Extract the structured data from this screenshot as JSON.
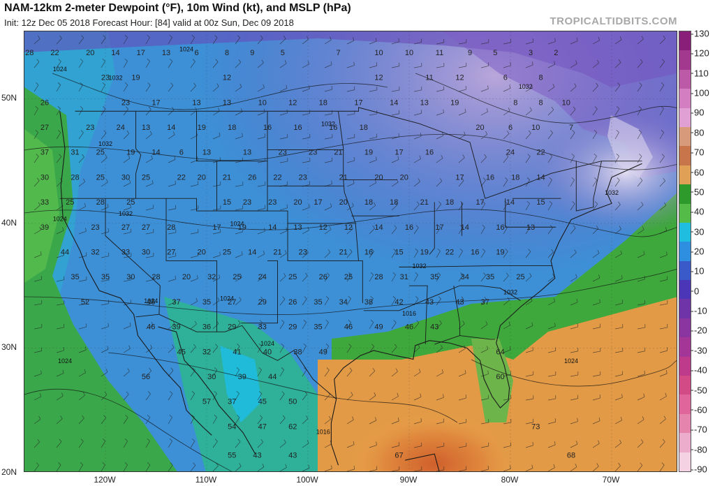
{
  "header": {
    "title": "NAM-12km 2-meter Dewpoint (°F), 10m Wind (kt), and MSLP (hPa)",
    "subtitle": "Init: 12z Dec 05 2018   Forecast Hour: [84]   valid at 00z Sun, Dec 09 2018",
    "brand": "TROPICALTIDBITS.COM"
  },
  "map": {
    "lat_labels": [
      {
        "text": "50N",
        "lat": 50
      },
      {
        "text": "40N",
        "lat": 40
      },
      {
        "text": "30N",
        "lat": 30
      },
      {
        "text": "20N",
        "lat": 20
      }
    ],
    "lon_labels": [
      {
        "text": "120W",
        "lon": -120
      },
      {
        "text": "110W",
        "lon": -110
      },
      {
        "text": "100W",
        "lon": -100
      },
      {
        "text": "90W",
        "lon": -90
      },
      {
        "text": "80W",
        "lon": -80
      },
      {
        "text": "70W",
        "lon": -70
      }
    ],
    "dewpoint_points": [
      {
        "v": "28",
        "lon": -127.5,
        "lat": 53.5
      },
      {
        "v": "22",
        "lon": -125,
        "lat": 53.5
      },
      {
        "v": "20",
        "lon": -121.5,
        "lat": 53.5
      },
      {
        "v": "14",
        "lon": -119,
        "lat": 53.5
      },
      {
        "v": "17",
        "lon": -116.5,
        "lat": 53.5
      },
      {
        "v": "13",
        "lon": -114,
        "lat": 53.5
      },
      {
        "v": "6",
        "lon": -111,
        "lat": 53.5
      },
      {
        "v": "8",
        "lon": -108,
        "lat": 53.5
      },
      {
        "v": "9",
        "lon": -105.5,
        "lat": 53.5
      },
      {
        "v": "5",
        "lon": -102.5,
        "lat": 53.5
      },
      {
        "v": "7",
        "lon": -97,
        "lat": 53.5
      },
      {
        "v": "10",
        "lon": -93,
        "lat": 53.5
      },
      {
        "v": "10",
        "lon": -90,
        "lat": 53.5
      },
      {
        "v": "11",
        "lon": -87,
        "lat": 53.5
      },
      {
        "v": "9",
        "lon": -84,
        "lat": 53.5
      },
      {
        "v": "5",
        "lon": -81.5,
        "lat": 53.5
      },
      {
        "v": "3",
        "lon": -78,
        "lat": 53.5
      },
      {
        "v": "2",
        "lon": -75.5,
        "lat": 53.5
      },
      {
        "v": "23",
        "lon": -120,
        "lat": 51.5
      },
      {
        "v": "19",
        "lon": -117,
        "lat": 51.5
      },
      {
        "v": "12",
        "lon": -108,
        "lat": 51.5
      },
      {
        "v": "12",
        "lon": -93,
        "lat": 51.5
      },
      {
        "v": "11",
        "lon": -88,
        "lat": 51.5
      },
      {
        "v": "12",
        "lon": -85,
        "lat": 51.5
      },
      {
        "v": "6",
        "lon": -80.5,
        "lat": 51.5
      },
      {
        "v": "8",
        "lon": -77,
        "lat": 51.5
      },
      {
        "v": "26",
        "lon": -126,
        "lat": 49.5
      },
      {
        "v": "23",
        "lon": -118,
        "lat": 49.5
      },
      {
        "v": "17",
        "lon": -115,
        "lat": 49.5
      },
      {
        "v": "13",
        "lon": -111,
        "lat": 49.5
      },
      {
        "v": "13",
        "lon": -108,
        "lat": 49.5
      },
      {
        "v": "10",
        "lon": -104.5,
        "lat": 49.5
      },
      {
        "v": "12",
        "lon": -101.5,
        "lat": 49.5
      },
      {
        "v": "18",
        "lon": -98.5,
        "lat": 49.5
      },
      {
        "v": "17",
        "lon": -95,
        "lat": 49.5
      },
      {
        "v": "14",
        "lon": -91.5,
        "lat": 49.5
      },
      {
        "v": "13",
        "lon": -88.5,
        "lat": 49.5
      },
      {
        "v": "19",
        "lon": -85.5,
        "lat": 49.5
      },
      {
        "v": "8",
        "lon": -79.5,
        "lat": 49.5
      },
      {
        "v": "8",
        "lon": -77,
        "lat": 49.5
      },
      {
        "v": "10",
        "lon": -74.5,
        "lat": 49.5
      },
      {
        "v": "27",
        "lon": -126,
        "lat": 47.5
      },
      {
        "v": "23",
        "lon": -121.5,
        "lat": 47.5
      },
      {
        "v": "24",
        "lon": -118.5,
        "lat": 47.5
      },
      {
        "v": "13",
        "lon": -116,
        "lat": 47.5
      },
      {
        "v": "14",
        "lon": -113.5,
        "lat": 47.5
      },
      {
        "v": "19",
        "lon": -110.5,
        "lat": 47.5
      },
      {
        "v": "18",
        "lon": -107.5,
        "lat": 47.5
      },
      {
        "v": "16",
        "lon": -104,
        "lat": 47.5
      },
      {
        "v": "16",
        "lon": -101,
        "lat": 47.5
      },
      {
        "v": "16",
        "lon": -97.5,
        "lat": 47.5
      },
      {
        "v": "18",
        "lon": -94.5,
        "lat": 47.5
      },
      {
        "v": "20",
        "lon": -83,
        "lat": 47.5
      },
      {
        "v": "6",
        "lon": -80,
        "lat": 47.5
      },
      {
        "v": "10",
        "lon": -77.5,
        "lat": 47.5
      },
      {
        "v": "7",
        "lon": -74,
        "lat": 47.5
      },
      {
        "v": "37",
        "lon": -126,
        "lat": 45.5
      },
      {
        "v": "31",
        "lon": -123,
        "lat": 45.5
      },
      {
        "v": "25",
        "lon": -120.5,
        "lat": 45.5
      },
      {
        "v": "19",
        "lon": -117.5,
        "lat": 45.5
      },
      {
        "v": "14",
        "lon": -115,
        "lat": 45.5
      },
      {
        "v": "6",
        "lon": -112.5,
        "lat": 45.5
      },
      {
        "v": "13",
        "lon": -110,
        "lat": 45.5
      },
      {
        "v": "13",
        "lon": -106,
        "lat": 45.5
      },
      {
        "v": "23",
        "lon": -102.5,
        "lat": 45.5
      },
      {
        "v": "23",
        "lon": -99.5,
        "lat": 45.5
      },
      {
        "v": "21",
        "lon": -97,
        "lat": 45.5
      },
      {
        "v": "19",
        "lon": -94,
        "lat": 45.5
      },
      {
        "v": "17",
        "lon": -91,
        "lat": 45.5
      },
      {
        "v": "16",
        "lon": -88,
        "lat": 45.5
      },
      {
        "v": "24",
        "lon": -80,
        "lat": 45.5
      },
      {
        "v": "22",
        "lon": -77,
        "lat": 45.5
      },
      {
        "v": "30",
        "lon": -126,
        "lat": 43.5
      },
      {
        "v": "28",
        "lon": -123,
        "lat": 43.5
      },
      {
        "v": "25",
        "lon": -120.5,
        "lat": 43.5
      },
      {
        "v": "30",
        "lon": -118,
        "lat": 43.5
      },
      {
        "v": "25",
        "lon": -116,
        "lat": 43.5
      },
      {
        "v": "22",
        "lon": -112.5,
        "lat": 43.5
      },
      {
        "v": "20",
        "lon": -110.5,
        "lat": 43.5
      },
      {
        "v": "21",
        "lon": -108,
        "lat": 43.5
      },
      {
        "v": "26",
        "lon": -105.5,
        "lat": 43.5
      },
      {
        "v": "22",
        "lon": -103,
        "lat": 43.5
      },
      {
        "v": "23",
        "lon": -100.5,
        "lat": 43.5
      },
      {
        "v": "21",
        "lon": -96.5,
        "lat": 43.5
      },
      {
        "v": "20",
        "lon": -93,
        "lat": 43.5
      },
      {
        "v": "20",
        "lon": -90.5,
        "lat": 43.5
      },
      {
        "v": "17",
        "lon": -85,
        "lat": 43.5
      },
      {
        "v": "16",
        "lon": -82,
        "lat": 43.5
      },
      {
        "v": "18",
        "lon": -79.5,
        "lat": 43.5
      },
      {
        "v": "14",
        "lon": -77,
        "lat": 43.5
      },
      {
        "v": "33",
        "lon": -126,
        "lat": 41.5
      },
      {
        "v": "25",
        "lon": -123.5,
        "lat": 41.5
      },
      {
        "v": "28",
        "lon": -120.5,
        "lat": 41.5
      },
      {
        "v": "25",
        "lon": -117.5,
        "lat": 41.5
      },
      {
        "v": "15",
        "lon": -108,
        "lat": 41.5
      },
      {
        "v": "23",
        "lon": -106,
        "lat": 41.5
      },
      {
        "v": "23",
        "lon": -103.5,
        "lat": 41.5
      },
      {
        "v": "20",
        "lon": -101,
        "lat": 41.5
      },
      {
        "v": "17",
        "lon": -99,
        "lat": 41.5
      },
      {
        "v": "20",
        "lon": -96.5,
        "lat": 41.5
      },
      {
        "v": "18",
        "lon": -94,
        "lat": 41.5
      },
      {
        "v": "18",
        "lon": -91.5,
        "lat": 41.5
      },
      {
        "v": "21",
        "lon": -88.5,
        "lat": 41.5
      },
      {
        "v": "18",
        "lon": -86,
        "lat": 41.5
      },
      {
        "v": "17",
        "lon": -83,
        "lat": 41.5
      },
      {
        "v": "14",
        "lon": -80,
        "lat": 41.5
      },
      {
        "v": "15",
        "lon": -77,
        "lat": 41.5
      },
      {
        "v": "39",
        "lon": -126,
        "lat": 39.5
      },
      {
        "v": "23",
        "lon": -121,
        "lat": 39.5
      },
      {
        "v": "27",
        "lon": -118,
        "lat": 39.5
      },
      {
        "v": "27",
        "lon": -116,
        "lat": 39.5
      },
      {
        "v": "28",
        "lon": -113.5,
        "lat": 39.5
      },
      {
        "v": "17",
        "lon": -109,
        "lat": 39.5
      },
      {
        "v": "19",
        "lon": -106.5,
        "lat": 39.5
      },
      {
        "v": "14",
        "lon": -103.5,
        "lat": 39.5
      },
      {
        "v": "13",
        "lon": -101,
        "lat": 39.5
      },
      {
        "v": "12",
        "lon": -98.5,
        "lat": 39.5
      },
      {
        "v": "12",
        "lon": -96,
        "lat": 39.5
      },
      {
        "v": "14",
        "lon": -93,
        "lat": 39.5
      },
      {
        "v": "16",
        "lon": -90,
        "lat": 39.5
      },
      {
        "v": "17",
        "lon": -87,
        "lat": 39.5
      },
      {
        "v": "14",
        "lon": -84.5,
        "lat": 39.5
      },
      {
        "v": "16",
        "lon": -81,
        "lat": 39.5
      },
      {
        "v": "13",
        "lon": -78,
        "lat": 39.5
      },
      {
        "v": "44",
        "lon": -124,
        "lat": 37.5
      },
      {
        "v": "32",
        "lon": -121,
        "lat": 37.5
      },
      {
        "v": "33",
        "lon": -118,
        "lat": 37.5
      },
      {
        "v": "30",
        "lon": -116,
        "lat": 37.5
      },
      {
        "v": "27",
        "lon": -113.5,
        "lat": 37.5
      },
      {
        "v": "20",
        "lon": -110.5,
        "lat": 37.5
      },
      {
        "v": "25",
        "lon": -108,
        "lat": 37.5
      },
      {
        "v": "14",
        "lon": -105.5,
        "lat": 37.5
      },
      {
        "v": "21",
        "lon": -103,
        "lat": 37.5
      },
      {
        "v": "23",
        "lon": -100.5,
        "lat": 37.5
      },
      {
        "v": "21",
        "lon": -96.5,
        "lat": 37.5
      },
      {
        "v": "16",
        "lon": -94,
        "lat": 37.5
      },
      {
        "v": "15",
        "lon": -91,
        "lat": 37.5
      },
      {
        "v": "19",
        "lon": -88.5,
        "lat": 37.5
      },
      {
        "v": "22",
        "lon": -86,
        "lat": 37.5
      },
      {
        "v": "16",
        "lon": -83.5,
        "lat": 37.5
      },
      {
        "v": "19",
        "lon": -81,
        "lat": 37.5
      },
      {
        "v": "35",
        "lon": -123,
        "lat": 35.5
      },
      {
        "v": "35",
        "lon": -120,
        "lat": 35.5
      },
      {
        "v": "30",
        "lon": -117.5,
        "lat": 35.5
      },
      {
        "v": "28",
        "lon": -115,
        "lat": 35.5
      },
      {
        "v": "20",
        "lon": -112,
        "lat": 35.5
      },
      {
        "v": "32",
        "lon": -109.5,
        "lat": 35.5
      },
      {
        "v": "25",
        "lon": -107,
        "lat": 35.5
      },
      {
        "v": "24",
        "lon": -104.5,
        "lat": 35.5
      },
      {
        "v": "25",
        "lon": -101.5,
        "lat": 35.5
      },
      {
        "v": "26",
        "lon": -98.5,
        "lat": 35.5
      },
      {
        "v": "25",
        "lon": -96,
        "lat": 35.5
      },
      {
        "v": "28",
        "lon": -93,
        "lat": 35.5
      },
      {
        "v": "31",
        "lon": -90.5,
        "lat": 35.5
      },
      {
        "v": "35",
        "lon": -87.5,
        "lat": 35.5
      },
      {
        "v": "34",
        "lon": -84.5,
        "lat": 35.5
      },
      {
        "v": "35",
        "lon": -82,
        "lat": 35.5
      },
      {
        "v": "25",
        "lon": -79,
        "lat": 35.5
      },
      {
        "v": "52",
        "lon": -122,
        "lat": 33.5
      },
      {
        "v": "46",
        "lon": -115.5,
        "lat": 33.5
      },
      {
        "v": "37",
        "lon": -113,
        "lat": 33.5
      },
      {
        "v": "35",
        "lon": -110,
        "lat": 33.5
      },
      {
        "v": "27",
        "lon": -107.5,
        "lat": 33.5
      },
      {
        "v": "29",
        "lon": -104.5,
        "lat": 33.5
      },
      {
        "v": "26",
        "lon": -101.5,
        "lat": 33.5
      },
      {
        "v": "35",
        "lon": -99,
        "lat": 33.5
      },
      {
        "v": "34",
        "lon": -96.5,
        "lat": 33.5
      },
      {
        "v": "38",
        "lon": -94,
        "lat": 33.5
      },
      {
        "v": "42",
        "lon": -91,
        "lat": 33.5
      },
      {
        "v": "43",
        "lon": -88,
        "lat": 33.5
      },
      {
        "v": "43",
        "lon": -85,
        "lat": 33.5
      },
      {
        "v": "37",
        "lon": -82.5,
        "lat": 33.5
      },
      {
        "v": "46",
        "lon": -115.5,
        "lat": 31.5
      },
      {
        "v": "39",
        "lon": -113,
        "lat": 31.5
      },
      {
        "v": "36",
        "lon": -110,
        "lat": 31.5
      },
      {
        "v": "29",
        "lon": -107.5,
        "lat": 31.5
      },
      {
        "v": "33",
        "lon": -104.5,
        "lat": 31.5
      },
      {
        "v": "29",
        "lon": -101.5,
        "lat": 31.5
      },
      {
        "v": "35",
        "lon": -99,
        "lat": 31.5
      },
      {
        "v": "46",
        "lon": -96,
        "lat": 31.5
      },
      {
        "v": "49",
        "lon": -93,
        "lat": 31.5
      },
      {
        "v": "46",
        "lon": -90,
        "lat": 31.5
      },
      {
        "v": "43",
        "lon": -87.5,
        "lat": 31.5
      },
      {
        "v": "45",
        "lon": -112.5,
        "lat": 29.5
      },
      {
        "v": "32",
        "lon": -110,
        "lat": 29.5
      },
      {
        "v": "41",
        "lon": -107,
        "lat": 29.5
      },
      {
        "v": "40",
        "lon": -104,
        "lat": 29.5
      },
      {
        "v": "38",
        "lon": -101,
        "lat": 29.5
      },
      {
        "v": "49",
        "lon": -98.5,
        "lat": 29.5
      },
      {
        "v": "64",
        "lon": -81,
        "lat": 29.5
      },
      {
        "v": "56",
        "lon": -116,
        "lat": 27.5
      },
      {
        "v": "30",
        "lon": -109.5,
        "lat": 27.5
      },
      {
        "v": "39",
        "lon": -106.5,
        "lat": 27.5
      },
      {
        "v": "44",
        "lon": -103.5,
        "lat": 27.5
      },
      {
        "v": "60",
        "lon": -81,
        "lat": 27.5
      },
      {
        "v": "57",
        "lon": -110,
        "lat": 25.5
      },
      {
        "v": "37",
        "lon": -107.5,
        "lat": 25.5
      },
      {
        "v": "45",
        "lon": -104.5,
        "lat": 25.5
      },
      {
        "v": "50",
        "lon": -101.5,
        "lat": 25.5
      },
      {
        "v": "54",
        "lon": -107.5,
        "lat": 23.5
      },
      {
        "v": "47",
        "lon": -104.5,
        "lat": 23.5
      },
      {
        "v": "62",
        "lon": -101.5,
        "lat": 23.5
      },
      {
        "v": "73",
        "lon": -77.5,
        "lat": 23.5
      },
      {
        "v": "55",
        "lon": -107.5,
        "lat": 21.2
      },
      {
        "v": "43",
        "lon": -105,
        "lat": 21.2
      },
      {
        "v": "43",
        "lon": -101.5,
        "lat": 21.2
      },
      {
        "v": "67",
        "lon": -91,
        "lat": 21.2
      },
      {
        "v": "68",
        "lon": -74,
        "lat": 21.2
      }
    ],
    "pressure_labels": [
      {
        "v": "1024",
        "lon": -112,
        "lat": 53.8
      },
      {
        "v": "1024",
        "lon": -124.5,
        "lat": 52.2
      },
      {
        "v": "1032",
        "lon": -119,
        "lat": 51.5
      },
      {
        "v": "1032",
        "lon": -98,
        "lat": 47.8
      },
      {
        "v": "1032",
        "lon": -78.5,
        "lat": 50.8
      },
      {
        "v": "1032",
        "lon": -120,
        "lat": 46.2
      },
      {
        "v": "1032",
        "lon": -118,
        "lat": 40.6
      },
      {
        "v": "1024",
        "lon": -107,
        "lat": 39.8
      },
      {
        "v": "1024",
        "lon": -124.5,
        "lat": 40.2
      },
      {
        "v": "1032",
        "lon": -89,
        "lat": 36.4
      },
      {
        "v": "1032",
        "lon": -70,
        "lat": 42.3
      },
      {
        "v": "1032",
        "lon": -80,
        "lat": 34.3
      },
      {
        "v": "1024",
        "lon": -115.5,
        "lat": 33.6
      },
      {
        "v": "1024",
        "lon": -108,
        "lat": 33.8
      },
      {
        "v": "1016",
        "lon": -90,
        "lat": 32.6
      },
      {
        "v": "1024",
        "lon": -104,
        "lat": 30.2
      },
      {
        "v": "1024",
        "lon": -124,
        "lat": 28.8
      },
      {
        "v": "1024",
        "lon": -74,
        "lat": 28.8
      },
      {
        "v": "1016",
        "lon": -98.5,
        "lat": 23.1
      }
    ]
  },
  "colorbar": {
    "ticks": [
      "130",
      "120",
      "110",
      "100",
      "90",
      "80",
      "70",
      "60",
      "50",
      "40",
      "30",
      "20",
      "10",
      "0",
      "-10",
      "-20",
      "-30",
      "-40",
      "-50",
      "-60",
      "-70",
      "-80",
      "-90"
    ],
    "colors": [
      "#8a1f7a",
      "#a3388f",
      "#bd5aa8",
      "#d27ec0",
      "#e0a0d4",
      "#d79b7c",
      "#c8754c",
      "#e0a055",
      "#2f9a2c",
      "#55bb48",
      "#1fbde0",
      "#2e8ee0",
      "#3a5ac9",
      "#4b36b8",
      "#6e34a8",
      "#8a35a0",
      "#a33696",
      "#be3b8b",
      "#d24a86",
      "#e0659a",
      "#e585ae",
      "#ecaccb",
      "#f4d2e4"
    ]
  }
}
